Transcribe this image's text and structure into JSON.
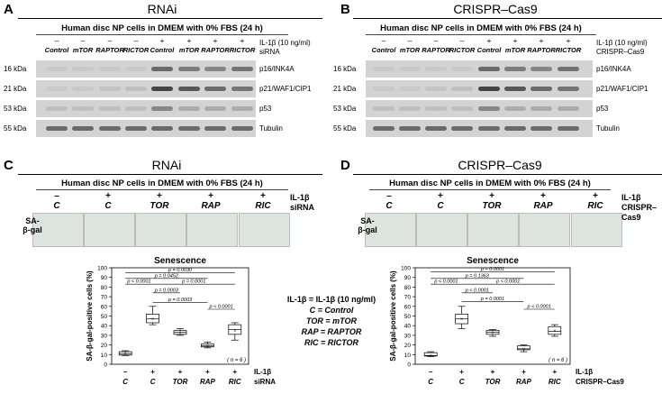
{
  "panels": {
    "A": {
      "letter": "A",
      "title": "RNAi"
    },
    "B": {
      "letter": "B",
      "title": "CRISPR–Cas9"
    },
    "C": {
      "letter": "C",
      "title": "RNAi"
    },
    "D": {
      "letter": "D",
      "title": "CRISPR–Cas9"
    }
  },
  "header": "Human disc NP cells in DMEM with 0% FBS (24 h)",
  "conditions": {
    "il1b_signs": [
      "–",
      "–",
      "–",
      "–",
      "+",
      "+",
      "+",
      "+"
    ],
    "il1b_label": "IL-1β (10 ng/ml)",
    "rnai_labels": [
      "Control",
      "mTOR",
      "RAPTOR",
      "RICTOR",
      "Control",
      "mTOR",
      "RAPTOR",
      "RICTOR"
    ],
    "rnai_row_label": "siRNA",
    "crispr_labels": [
      "Control",
      "mTOR",
      "RAPTOR",
      "RICTOR",
      "Control",
      "mTOR",
      "RAPTOR",
      "RICTOR"
    ],
    "crispr_row_label": "CRISPR–Cas9"
  },
  "blots": [
    {
      "kda": "16 kDa",
      "protein": "p16/INK4A"
    },
    {
      "kda": "21 kDa",
      "protein": "p21/WAF1/CIP1"
    },
    {
      "kda": "53 kDa",
      "protein": "p53"
    },
    {
      "kda": "55 kDa",
      "protein": "Tubulin"
    }
  ],
  "blots_b": [
    {
      "kda": "16 kDa",
      "protein": "p16/INK4A"
    },
    {
      "kda": "21 kDa",
      "protein": "p21/WAF1/CIP1"
    },
    {
      "kda": "53 kDa",
      "protein": "p53"
    },
    {
      "kda": "55 kDa",
      "protein": "Tubulin"
    }
  ],
  "sagal": {
    "signs": [
      "–",
      "+",
      "+",
      "+",
      "+"
    ],
    "labels": [
      "C",
      "C",
      "TOR",
      "RAP",
      "RIC"
    ],
    "row_label": "SA-\nβ-gal",
    "il1b": "IL-1β",
    "sirna": "siRNA",
    "crispr": "CRISPR–",
    "cas9": "Cas9"
  },
  "legend": {
    "l1": "IL-1β = IL-1β (10 ng/ml)",
    "l2": "C = Control",
    "l3": "TOR = mTOR",
    "l4": "RAP = RAPTOR",
    "l5": "RIC = RICTOR"
  },
  "chart_data": [
    {
      "type": "box",
      "title": "Senescence",
      "ylabel": "SA-β-gal-positive cells (%)",
      "ylim": [
        0,
        100
      ],
      "yticks": [
        0,
        10,
        20,
        30,
        40,
        50,
        60,
        70,
        80,
        90,
        100
      ],
      "categories": [
        "C",
        "C",
        "TOR",
        "RAP",
        "RIC"
      ],
      "signs": [
        "–",
        "+",
        "+",
        "+",
        "+"
      ],
      "row1": "IL-1β",
      "row2": "siRNA",
      "n_label": "( n = 6 )",
      "boxes": [
        {
          "min": 9,
          "q1": 9.5,
          "median": 11,
          "q3": 13,
          "max": 14,
          "mean": 11
        },
        {
          "min": 41,
          "q1": 43,
          "median": 47,
          "q3": 52,
          "max": 60,
          "mean": 47
        },
        {
          "min": 30,
          "q1": 31,
          "median": 33,
          "q3": 35,
          "max": 37,
          "mean": 33
        },
        {
          "min": 17,
          "q1": 18,
          "median": 19,
          "q3": 21,
          "max": 23,
          "mean": 19
        },
        {
          "min": 25,
          "q1": 31,
          "median": 36,
          "q3": 41,
          "max": 43,
          "mean": 35
        }
      ],
      "pvalues": [
        {
          "from": 0,
          "to": 4,
          "y": 95,
          "label": "p = 0.0030"
        },
        {
          "from": 0,
          "to": 3,
          "y": 89,
          "label": "p = 0.0452"
        },
        {
          "from": 0,
          "to": 1,
          "y": 83,
          "label": "p < 0.0001"
        },
        {
          "from": 1,
          "to": 4,
          "y": 83,
          "label": "p = 0.0001"
        },
        {
          "from": 1,
          "to": 2,
          "y": 74,
          "label": "p = 0.0003"
        },
        {
          "from": 1,
          "to": 3,
          "y": 64,
          "label": "p = 0.0003"
        },
        {
          "from": 3,
          "to": 4,
          "y": 57,
          "label": "p < 0.0001"
        }
      ]
    },
    {
      "type": "box",
      "title": "Senescence",
      "ylabel": "SA-β-gal-positive cells (%)",
      "ylim": [
        0,
        100
      ],
      "yticks": [
        0,
        10,
        20,
        30,
        40,
        50,
        60,
        70,
        80,
        90,
        100
      ],
      "categories": [
        "C",
        "C",
        "TOR",
        "RAP",
        "RIC"
      ],
      "signs": [
        "–",
        "+",
        "+",
        "+",
        "+"
      ],
      "row1": "IL-1β",
      "row2": "CRISPR–Cas9",
      "n_label": "( n = 6 )",
      "boxes": [
        {
          "min": 8,
          "q1": 8.5,
          "median": 9,
          "q3": 12,
          "max": 13,
          "mean": 9.5
        },
        {
          "min": 37,
          "q1": 42,
          "median": 47,
          "q3": 52,
          "max": 60,
          "mean": 47
        },
        {
          "min": 29,
          "q1": 31,
          "median": 33,
          "q3": 35,
          "max": 36,
          "mean": 33
        },
        {
          "min": 13,
          "q1": 15,
          "median": 16,
          "q3": 19,
          "max": 20,
          "mean": 16
        },
        {
          "min": 29,
          "q1": 31,
          "median": 34,
          "q3": 39,
          "max": 41,
          "mean": 35
        }
      ],
      "pvalues": [
        {
          "from": 0,
          "to": 4,
          "y": 96,
          "label": "p = 0.0001"
        },
        {
          "from": 0,
          "to": 3,
          "y": 89,
          "label": "p = 0.1363"
        },
        {
          "from": 0,
          "to": 1,
          "y": 83,
          "label": "p < 0.0001"
        },
        {
          "from": 1,
          "to": 4,
          "y": 83,
          "label": "p < 0.0001"
        },
        {
          "from": 1,
          "to": 2,
          "y": 74,
          "label": "p < 0.0001"
        },
        {
          "from": 1,
          "to": 3,
          "y": 65,
          "label": "p = 0.0001"
        },
        {
          "from": 3,
          "to": 4,
          "y": 57,
          "label": "p < 0.0001"
        }
      ]
    }
  ]
}
